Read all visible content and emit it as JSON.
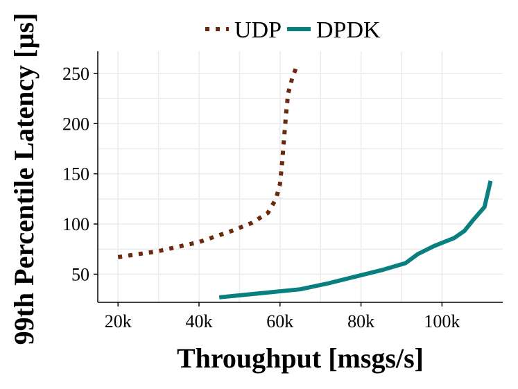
{
  "chart_data": {
    "type": "line",
    "xlabel": "Throughput [msgs/s]",
    "ylabel": "99th Percentile Latency [µs]",
    "xlim": [
      15000,
      115000
    ],
    "ylim": [
      22,
      272
    ],
    "x_ticks": [
      {
        "value": 20000,
        "label": "20k"
      },
      {
        "value": 40000,
        "label": "40k"
      },
      {
        "value": 60000,
        "label": "60k"
      },
      {
        "value": 80000,
        "label": "80k"
      },
      {
        "value": 100000,
        "label": "100k"
      }
    ],
    "y_ticks": [
      {
        "value": 50,
        "label": "50"
      },
      {
        "value": 100,
        "label": "100"
      },
      {
        "value": 150,
        "label": "150"
      },
      {
        "value": 200,
        "label": "200"
      },
      {
        "value": 250,
        "label": "250"
      }
    ],
    "grid": true,
    "legend_position": "top",
    "series": [
      {
        "name": "UDP",
        "color": "#6b2a0e",
        "style": "dotted",
        "x": [
          20000,
          30000,
          40000,
          48000,
          53000,
          57000,
          59000,
          60000,
          60500,
          61000,
          61500,
          62000,
          63000,
          64000
        ],
        "y": [
          67,
          73,
          82,
          93,
          101,
          111,
          125,
          140,
          160,
          185,
          210,
          230,
          245,
          256
        ]
      },
      {
        "name": "DPDK",
        "color": "#0a7f7f",
        "style": "solid",
        "x": [
          45000,
          55000,
          65000,
          72000,
          78000,
          85000,
          91000,
          94000,
          98000,
          103000,
          105500,
          107500,
          110500,
          112000
        ],
        "y": [
          27,
          31,
          35,
          41,
          47,
          54,
          61,
          70,
          78,
          86,
          93,
          103,
          117,
          143
        ]
      }
    ]
  }
}
